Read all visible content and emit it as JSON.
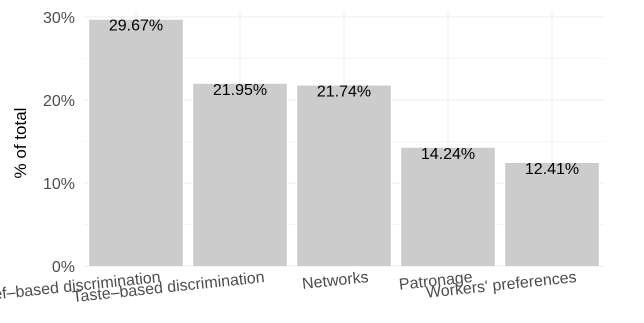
{
  "chart_data": {
    "type": "bar",
    "title": "",
    "xlabel": "",
    "ylabel": "% of total",
    "categories": [
      "Belief–based discrimination",
      "Taste–based discrimination",
      "Networks",
      "Patronage",
      "Workers' preferences"
    ],
    "values": [
      29.67,
      21.95,
      21.74,
      14.24,
      12.41
    ],
    "data_labels": [
      "29.67%",
      "21.95%",
      "21.74%",
      "14.24%",
      "12.41%"
    ],
    "ylim": [
      0,
      30
    ],
    "y_ticks": [
      0,
      10,
      20,
      30
    ],
    "y_tick_labels": [
      "0%",
      "10%",
      "20%",
      "30%"
    ],
    "grid": true,
    "legend": "none",
    "colors": {
      "bar": "#cccccc",
      "grid_major": "#ebebeb",
      "grid_minor": "#f5f5f5",
      "tick_text": "#4d4d4d",
      "label_text": "#000000"
    }
  }
}
